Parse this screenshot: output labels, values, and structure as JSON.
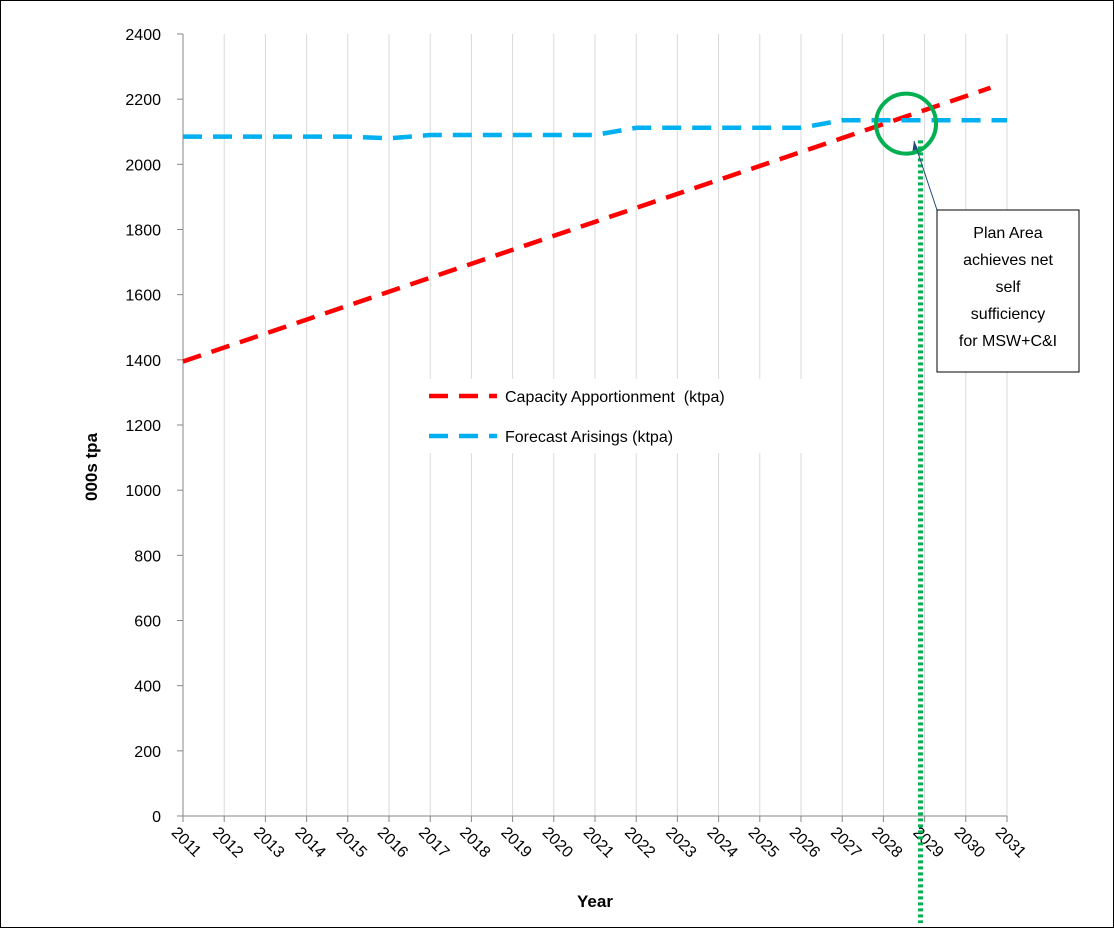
{
  "chart_data": {
    "type": "line",
    "title": "",
    "xlabel": "Year",
    "ylabel": "000s tpa",
    "x": [
      2011,
      2012,
      2013,
      2014,
      2015,
      2016,
      2017,
      2018,
      2019,
      2020,
      2021,
      2022,
      2023,
      2024,
      2025,
      2026,
      2027,
      2028,
      2029,
      2030,
      2031
    ],
    "x_tick_labels": [
      "2011",
      "2012",
      "2013",
      "2014",
      "2015",
      "2016",
      "2017",
      "2018",
      "2019",
      "2020",
      "2021",
      "2022",
      "2023",
      "2024",
      "2025",
      "2026",
      "2027",
      "2028",
      "2029",
      "2030",
      "2031"
    ],
    "ylim": [
      0,
      2400
    ],
    "y_ticks": [
      0,
      200,
      400,
      600,
      800,
      1000,
      1200,
      1400,
      1600,
      1800,
      2000,
      2200,
      2400
    ],
    "grid": "vertical",
    "legend_position": "center",
    "series": [
      {
        "name": "Capacity Apportionment  (ktpa)",
        "color": "#ff0000",
        "style": "dashed",
        "x": [
          2011,
          2030.6
        ],
        "values": [
          1395,
          2235
        ]
      },
      {
        "name": "Forecast Arisings (ktpa)",
        "color": "#00b0f0",
        "style": "dashed",
        "x": [
          2011,
          2012,
          2013,
          2014,
          2015,
          2016,
          2017,
          2018,
          2019,
          2020,
          2021,
          2022,
          2023,
          2024,
          2025,
          2026,
          2027,
          2028,
          2029,
          2030,
          2031
        ],
        "values": [
          2085,
          2085,
          2085,
          2085,
          2085,
          2080,
          2090,
          2090,
          2090,
          2090,
          2090,
          2112,
          2112,
          2112,
          2112,
          2112,
          2135,
          2135,
          2135,
          2135,
          2135
        ]
      }
    ],
    "annotations": {
      "marker_year": 2028.9,
      "marker_color": "#00b050",
      "circle_center": [
        2028.55,
        2125
      ],
      "callout_lines": [
        "Plan Area",
        "achieves net",
        "self",
        "sufficiency",
        "for MSW+C&I"
      ]
    }
  }
}
